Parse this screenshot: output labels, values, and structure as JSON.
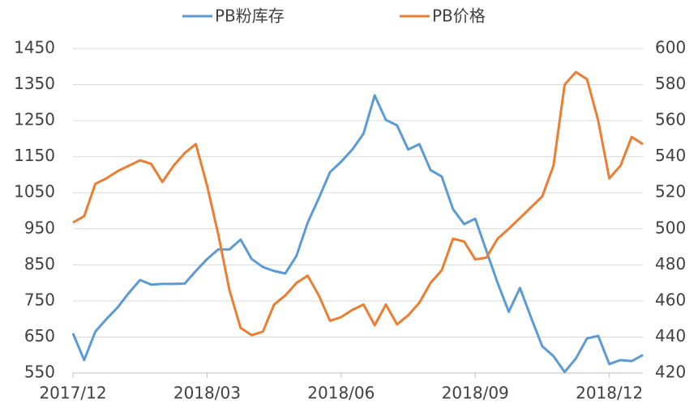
{
  "chart_data": {
    "type": "line",
    "categories": [
      "2017/12",
      null,
      null,
      null,
      null,
      null,
      null,
      null,
      null,
      null,
      null,
      null,
      "2018/03",
      null,
      null,
      null,
      null,
      null,
      null,
      null,
      null,
      null,
      null,
      null,
      "2018/06",
      null,
      null,
      null,
      null,
      null,
      null,
      null,
      null,
      null,
      null,
      null,
      "2018/09",
      null,
      null,
      null,
      null,
      null,
      null,
      null,
      null,
      null,
      null,
      null,
      "2018/12",
      null,
      null,
      null
    ],
    "series": [
      {
        "name": "PB粉库存",
        "color": "#5b9bd5",
        "axis": "y",
        "values": [
          660,
          586,
          665,
          700,
          732,
          772,
          808,
          795,
          797,
          797,
          798,
          833,
          866,
          893,
          893,
          920,
          866,
          844,
          833,
          826,
          875,
          967,
          1035,
          1107,
          1136,
          1170,
          1214,
          1320,
          1252,
          1237,
          1170,
          1185,
          1113,
          1095,
          1005,
          963,
          978,
          889,
          800,
          720,
          786,
          703,
          624,
          597,
          553,
          590,
          646,
          653,
          575,
          586,
          583,
          600
        ]
      },
      {
        "name": "PB价格",
        "color": "#ed7d31",
        "axis": "y2",
        "values": [
          503.5,
          507,
          525,
          528,
          532,
          535,
          538,
          536,
          526,
          535,
          542,
          547,
          524,
          497,
          466,
          445,
          441,
          443,
          458,
          463,
          470,
          474,
          463,
          449,
          451,
          455,
          458,
          446.5,
          458,
          447,
          452,
          459,
          470,
          477,
          494.5,
          493,
          483,
          484,
          494.5,
          500,
          506,
          512,
          518,
          535,
          580,
          587,
          583,
          560,
          528,
          535,
          551,
          547
        ]
      }
    ],
    "ylim": [
      550,
      1450
    ],
    "yticks": [
      550,
      650,
      750,
      850,
      950,
      1050,
      1150,
      1250,
      1350,
      1450
    ],
    "y2lim": [
      420,
      600
    ],
    "y2ticks": [
      420,
      440,
      460,
      480,
      500,
      520,
      540,
      560,
      580,
      600
    ],
    "grid": true,
    "legend": "top"
  }
}
